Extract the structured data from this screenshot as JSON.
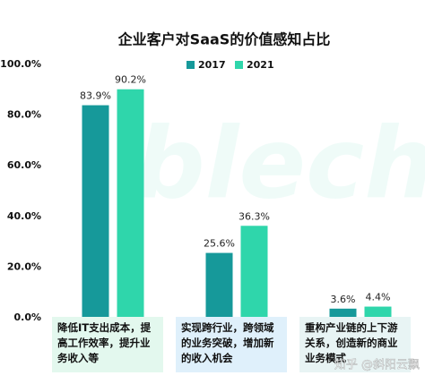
{
  "chart_data": {
    "type": "bar",
    "title": "企业客户对SaaS的价值感知占比",
    "categories": [
      "降低IT支出成本，提高工作效率，提升业务收入等",
      "实现跨行业，跨领域的业务突破，增加新的收入机会",
      "重构产业链的上下游关系，创造新的商业业务模式"
    ],
    "series": [
      {
        "name": "2017",
        "color": "#16999a",
        "values": [
          83.9,
          25.6,
          3.6
        ],
        "value_labels": [
          "83.9%",
          "25.6%",
          "3.6%"
        ]
      },
      {
        "name": "2021",
        "color": "#2fd6ab",
        "values": [
          90.2,
          36.3,
          4.4
        ],
        "value_labels": [
          "90.2%",
          "36.3%",
          "4.4%"
        ]
      }
    ],
    "ylim": [
      0,
      100
    ],
    "yticks": [
      {
        "value": 0,
        "label": "0.0%"
      },
      {
        "value": 20,
        "label": "20.0%"
      },
      {
        "value": 40,
        "label": "40.0%"
      },
      {
        "value": 60,
        "label": "60.0%"
      },
      {
        "value": 80,
        "label": "80.0%"
      },
      {
        "value": 100,
        "label": "100.0%"
      }
    ],
    "category_colors": [
      "#e3f8ee",
      "#dff0fb",
      "#e8f4f4"
    ],
    "watermark": "知乎 @斜阳云飘"
  }
}
